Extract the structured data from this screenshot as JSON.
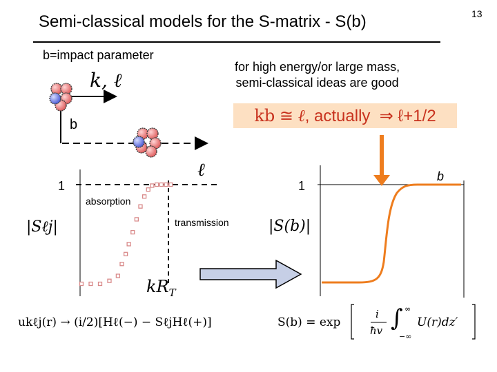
{
  "slide": {
    "title": "Semi-classical models for the S-matrix - S(b)",
    "page_number": "13",
    "impact_label": "b=impact parameter",
    "note_line1": "for high energy/or large mass,",
    "note_line2": "semi-classical ideas are good",
    "relation": {
      "kb": "kb",
      "approx": "≅",
      "ell": "ℓ",
      "actually": ", actually",
      "implies": "⇒",
      "ell_plus": "ℓ+1/2"
    },
    "beam_label": "k, ℓ",
    "b_label": "b"
  },
  "left_plot": {
    "one": "1",
    "x_label": "ℓ",
    "y_label": "|Sℓj|",
    "absorption": "absorption",
    "transmission": "transmission",
    "kRT": "kR",
    "kRT_sub": "T",
    "points": [
      {
        "l": 0.0,
        "s": 0.0
      },
      {
        "l": 0.6,
        "s": 0.0
      },
      {
        "l": 1.2,
        "s": 0.0
      },
      {
        "l": 1.8,
        "s": 0.03
      },
      {
        "l": 2.35,
        "s": 0.08
      },
      {
        "l": 2.6,
        "s": 0.2
      },
      {
        "l": 2.85,
        "s": 0.3
      },
      {
        "l": 3.05,
        "s": 0.4
      },
      {
        "l": 3.3,
        "s": 0.52
      },
      {
        "l": 3.55,
        "s": 0.65
      },
      {
        "l": 3.8,
        "s": 0.78
      },
      {
        "l": 4.05,
        "s": 0.88
      },
      {
        "l": 4.3,
        "s": 0.95
      },
      {
        "l": 4.55,
        "s": 0.99
      },
      {
        "l": 4.85,
        "s": 1.0
      },
      {
        "l": 5.15,
        "s": 1.0
      },
      {
        "l": 5.45,
        "s": 1.0
      },
      {
        "l": 5.75,
        "s": 1.0
      }
    ]
  },
  "right_plot": {
    "one": "1",
    "x_label": "b",
    "y_label": "|S(b)|"
  },
  "formulas": {
    "left": "ukℓj(r) → (i/2)[Hℓ(−) − SℓjHℓ(+)]",
    "right_lhs": "S(b) = exp",
    "right_frac_num": "i",
    "right_frac_den": "ħv",
    "right_integral": "∫",
    "right_lower": "−∞",
    "right_upper": "∞",
    "right_integrand": "U(r)dz′"
  },
  "colors": {
    "orange": "#ee7d1e",
    "relation_bg": "#fde0c2",
    "relation_text": "#c8321e",
    "nucleon_red": "#f08a8a",
    "nucleon_blue": "#6b7ce8",
    "dots": "#d98a8a",
    "arrow_fill": "#c6cfe6"
  },
  "icons": {
    "nucleus": "nucleus-icon",
    "projectile": "nucleon-icon"
  }
}
